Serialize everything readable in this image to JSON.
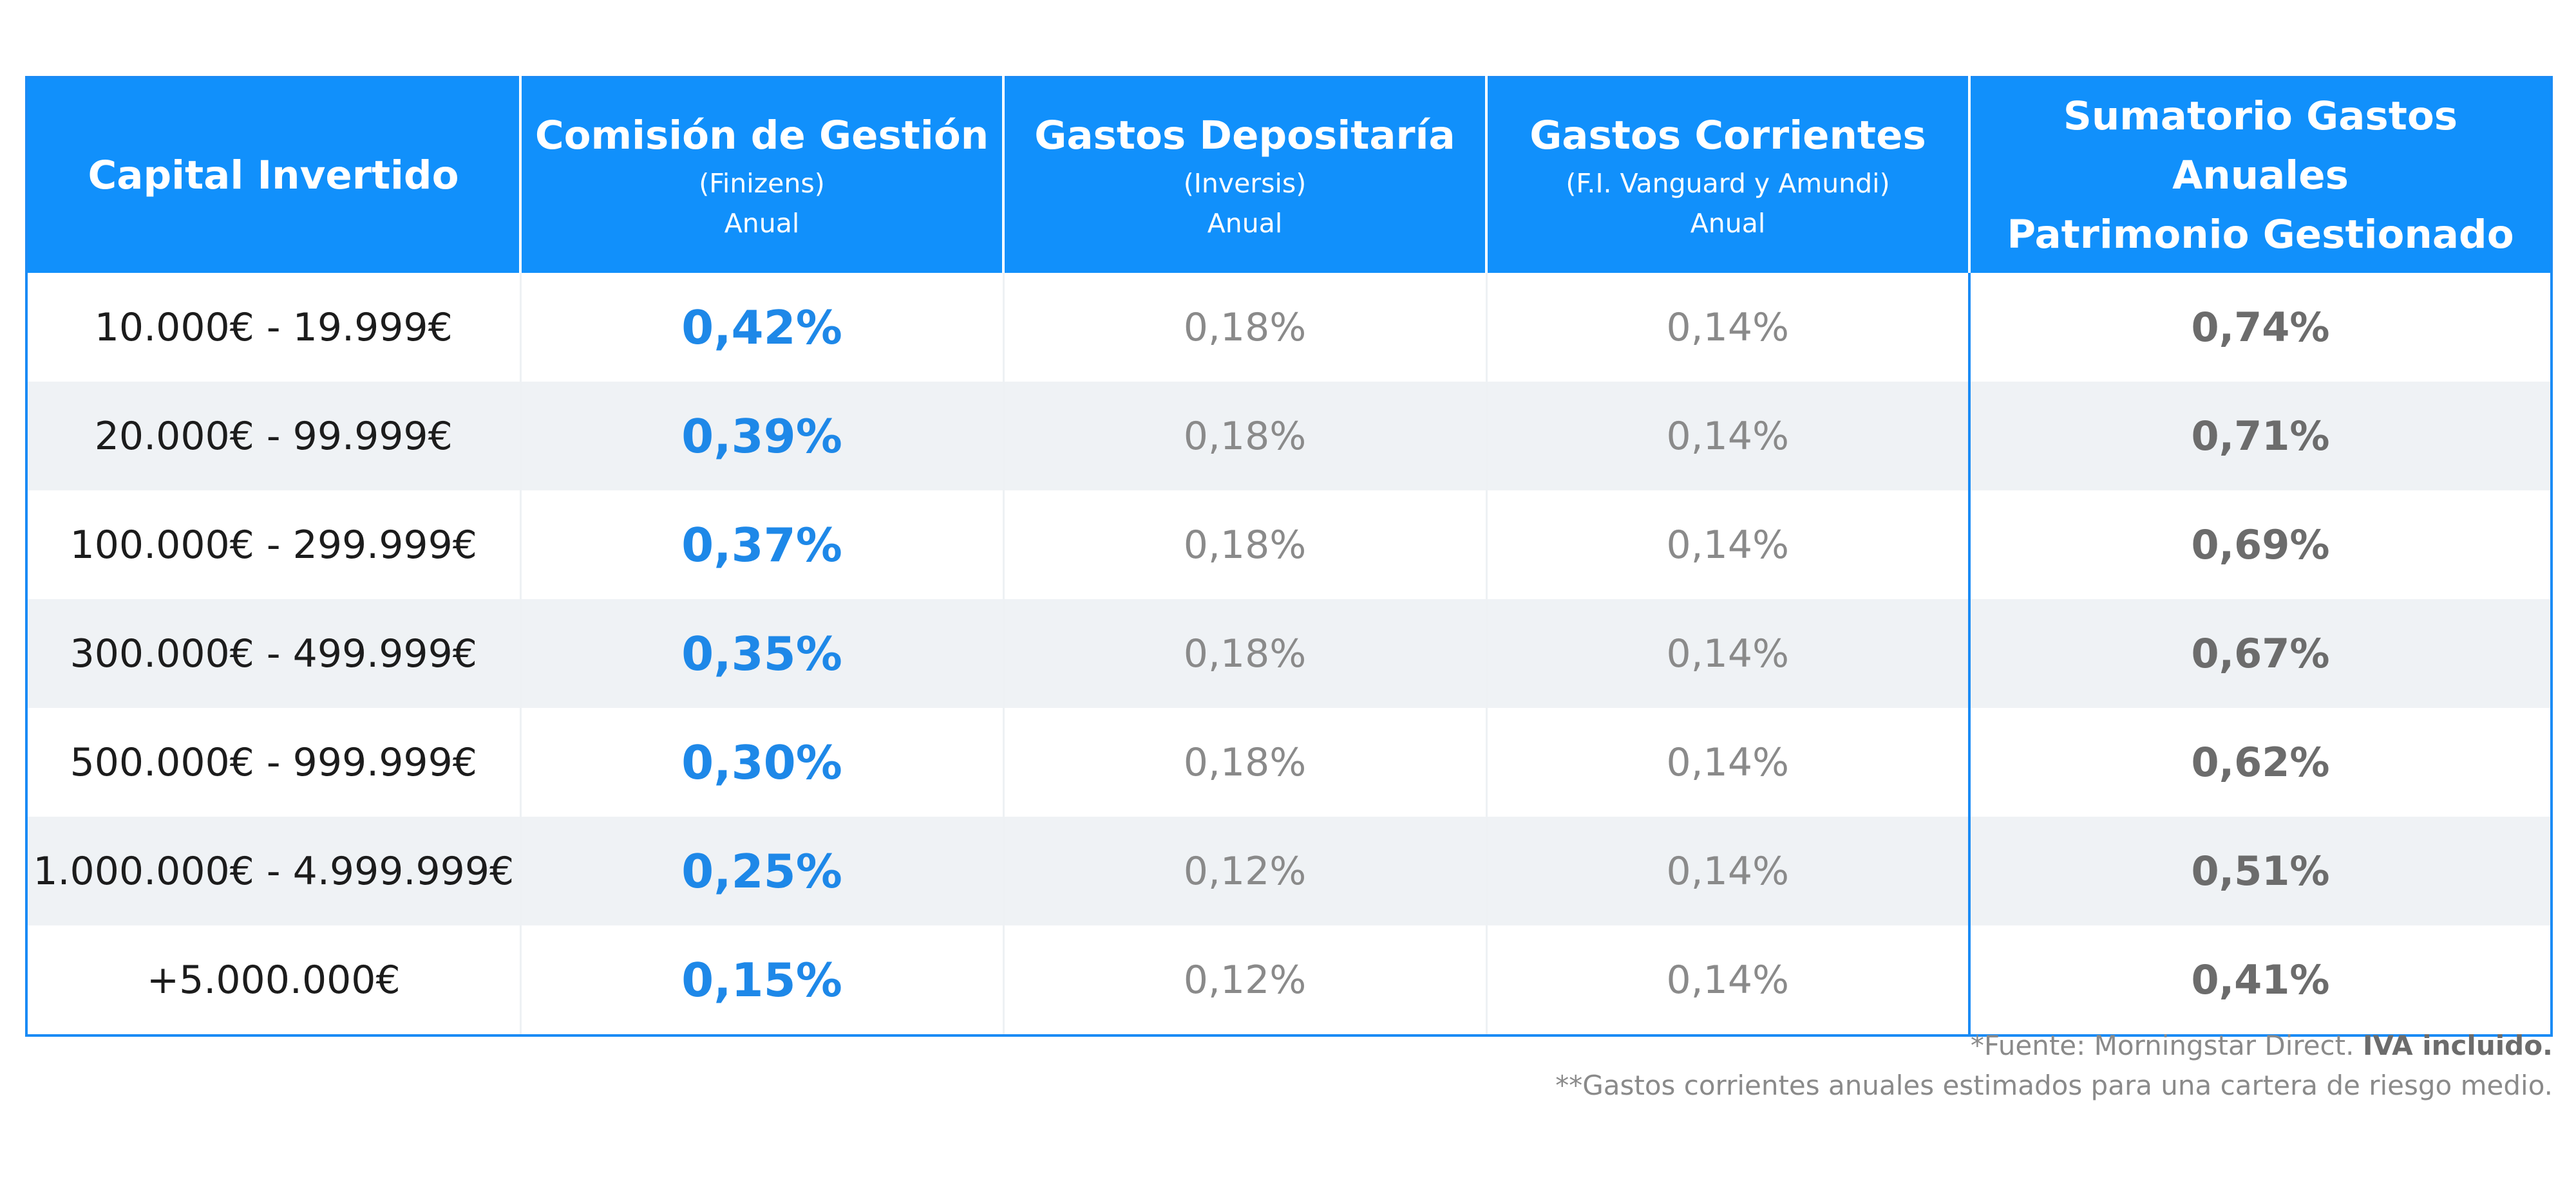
{
  "table": {
    "headers": [
      {
        "title": "Capital Invertido",
        "subtitle": "",
        "period": ""
      },
      {
        "title": "Comisión de Gestión",
        "subtitle": "(Finizens)",
        "period": "Anual"
      },
      {
        "title": "Gastos Depositaría",
        "subtitle": "(Inversis)",
        "period": "Anual"
      },
      {
        "title": "Gastos Corrientes",
        "subtitle": "(F.I. Vanguard y Amundi)",
        "period": "Anual"
      },
      {
        "title_line1": "Sumatorio Gastos Anuales",
        "title_line2": "Patrimonio Gestionado"
      }
    ],
    "rows": [
      {
        "capital": "10.000€ - 19.999€",
        "comision": "0,42%",
        "depositaria": "0,18%",
        "corrientes": "0,14%",
        "sumatorio": "0,74%"
      },
      {
        "capital": "20.000€ - 99.999€",
        "comision": "0,39%",
        "depositaria": "0,18%",
        "corrientes": "0,14%",
        "sumatorio": "0,71%"
      },
      {
        "capital": "100.000€ - 299.999€",
        "comision": "0,37%",
        "depositaria": "0,18%",
        "corrientes": "0,14%",
        "sumatorio": "0,69%"
      },
      {
        "capital": "300.000€ - 499.999€",
        "comision": "0,35%",
        "depositaria": "0,18%",
        "corrientes": "0,14%",
        "sumatorio": "0,67%"
      },
      {
        "capital": "500.000€ - 999.999€",
        "comision": "0,30%",
        "depositaria": "0,18%",
        "corrientes": "0,14%",
        "sumatorio": "0,62%"
      },
      {
        "capital": "1.000.000€ - 4.999.999€",
        "comision": "0,25%",
        "depositaria": "0,12%",
        "corrientes": "0,14%",
        "sumatorio": "0,51%"
      },
      {
        "capital": "+5.000.000€",
        "comision": "0,15%",
        "depositaria": "0,12%",
        "corrientes": "0,14%",
        "sumatorio": "0,41%"
      }
    ]
  },
  "footnotes": {
    "line1_text": "*Fuente: Morningstar Direct. ",
    "line1_bold": "IVA incluido.",
    "line2": "**Gastos corrientes anuales estimados para una cartera de riesgo medio."
  },
  "colors": {
    "header_bg": "#1190fb",
    "border": "#1a8bf5",
    "comision_text": "#1e88e8",
    "row_alt_bg": "#eff2f5",
    "gray_text": "#8a8a8a",
    "sum_text": "#6c6c6c"
  }
}
